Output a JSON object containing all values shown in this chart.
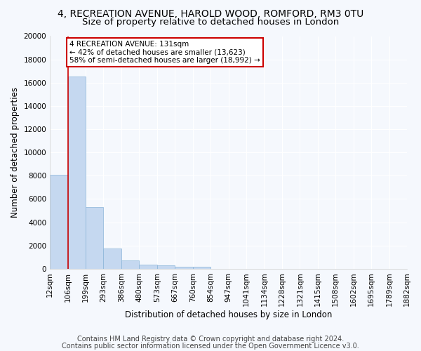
{
  "title_line1": "4, RECREATION AVENUE, HAROLD WOOD, ROMFORD, RM3 0TU",
  "title_line2": "Size of property relative to detached houses in London",
  "xlabel": "Distribution of detached houses by size in London",
  "ylabel": "Number of detached properties",
  "bin_labels": [
    "12sqm",
    "106sqm",
    "199sqm",
    "293sqm",
    "386sqm",
    "480sqm",
    "573sqm",
    "667sqm",
    "760sqm",
    "854sqm",
    "947sqm",
    "1041sqm",
    "1134sqm",
    "1228sqm",
    "1321sqm",
    "1415sqm",
    "1508sqm",
    "1602sqm",
    "1695sqm",
    "1789sqm",
    "1882sqm"
  ],
  "bar_heights": [
    8100,
    16500,
    5300,
    1750,
    700,
    350,
    270,
    200,
    170,
    0,
    0,
    0,
    0,
    0,
    0,
    0,
    0,
    0,
    0,
    0
  ],
  "bar_color": "#c5d8f0",
  "bar_edge_color": "#8ab4d8",
  "property_line_x": 1,
  "annotation_text": "4 RECREATION AVENUE: 131sqm\n← 42% of detached houses are smaller (13,623)\n58% of semi-detached houses are larger (18,992) →",
  "annotation_box_color": "#ffffff",
  "annotation_box_edge": "#cc0000",
  "vline_color": "#cc0000",
  "ylim": [
    0,
    20000
  ],
  "yticks": [
    0,
    2000,
    4000,
    6000,
    8000,
    10000,
    12000,
    14000,
    16000,
    18000,
    20000
  ],
  "footer_line1": "Contains HM Land Registry data © Crown copyright and database right 2024.",
  "footer_line2": "Contains public sector information licensed under the Open Government Licence v3.0.",
  "bg_color": "#f5f8fd",
  "grid_color": "#ffffff",
  "title_fontsize": 10,
  "subtitle_fontsize": 9.5,
  "axis_label_fontsize": 8.5,
  "tick_fontsize": 7.5,
  "footer_fontsize": 7,
  "annotation_fontsize": 7.5
}
